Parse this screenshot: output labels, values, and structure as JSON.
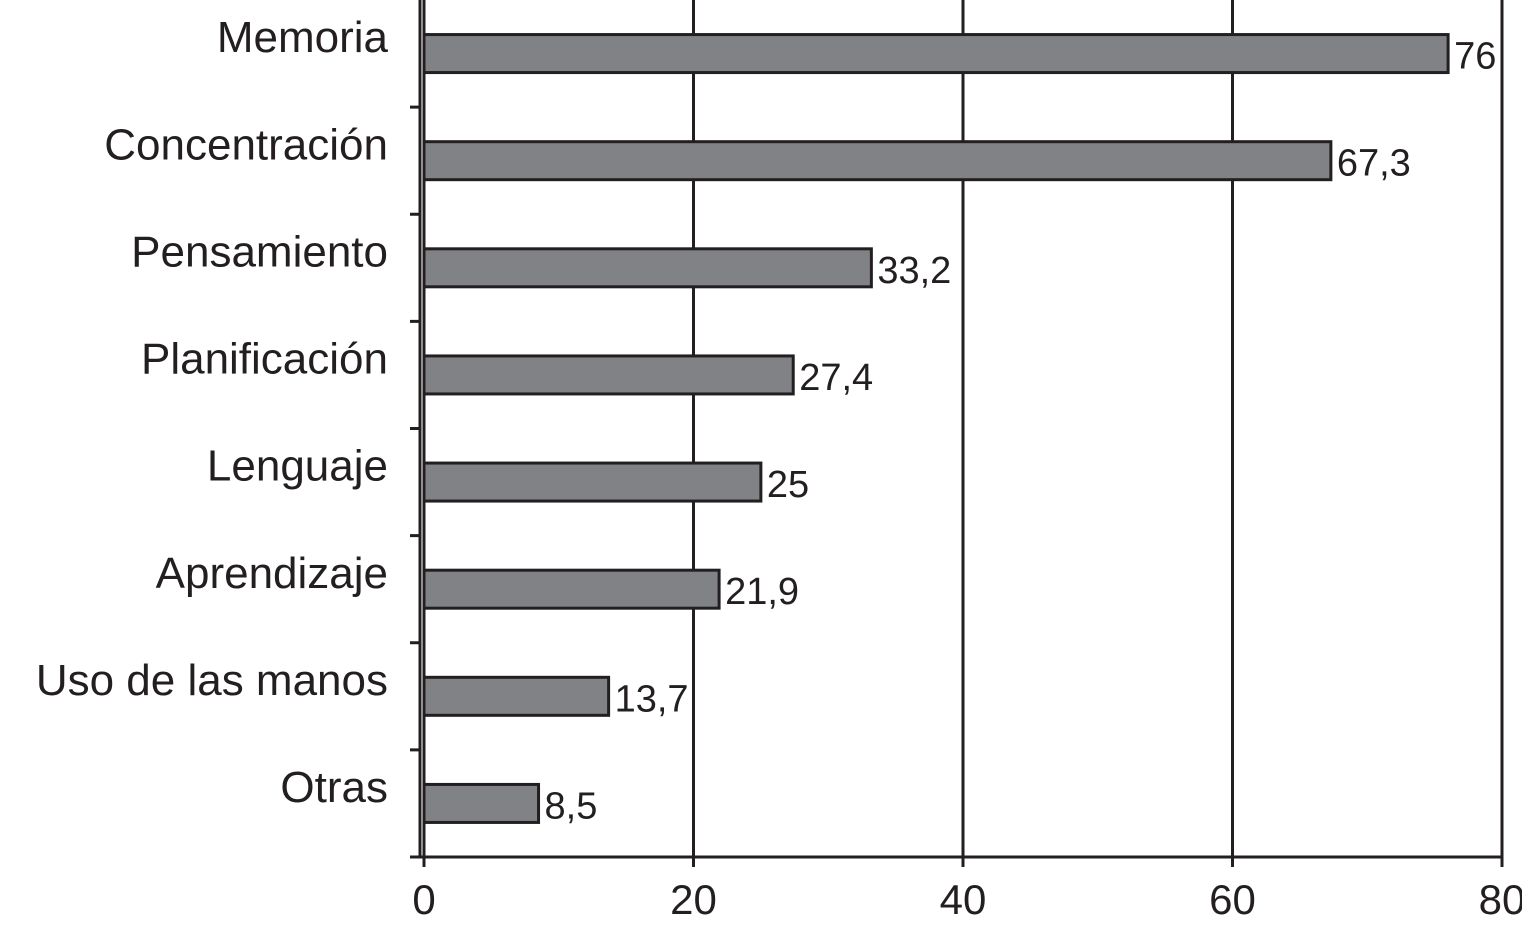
{
  "chart_data": {
    "type": "barh",
    "categories": [
      "Memoria",
      "Concentración",
      "Pensamiento",
      "Planificación",
      "Lenguaje",
      "Aprendizaje",
      "Uso de las manos",
      "Otras"
    ],
    "values": [
      76,
      67.3,
      33.2,
      27.4,
      25,
      21.9,
      13.7,
      8.5
    ],
    "value_labels": [
      "76",
      "67,3",
      "33,2",
      "27,4",
      "25",
      "21,9",
      "13,7",
      "8,5"
    ],
    "color": "#808285",
    "xlim": [
      0,
      80
    ],
    "xticks": [
      0,
      20,
      40,
      60,
      80
    ],
    "grid": true
  }
}
